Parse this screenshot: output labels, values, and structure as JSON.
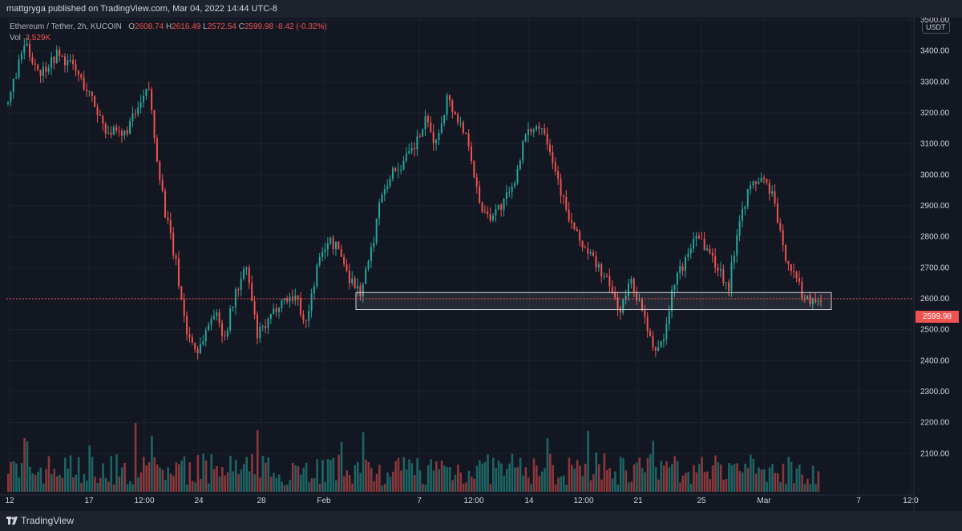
{
  "header": {
    "publisher_text": "mattgryga published on TradingView.com, Mar 04, 2022 14:44 UTC-8"
  },
  "legend": {
    "symbol": "Ethereum / Tether, 2h, KUCOIN",
    "open_label": "O",
    "open": "2608.74",
    "high_label": "H",
    "high": "2616.49",
    "low_label": "L",
    "low": "2572.54",
    "close_label": "C",
    "close": "2599.98",
    "change": "-8.42 (-0.32%)",
    "vol_label": "Vol",
    "vol": "3.529K"
  },
  "axis": {
    "currency": "USDT",
    "last_price_label": "2599.98"
  },
  "footer": {
    "brand": "TradingView"
  },
  "colors": {
    "background": "#131722",
    "bull": "#26a69a",
    "bear": "#ef5350",
    "grid": "#1e222d",
    "axis_text": "#d1d4dc"
  },
  "chart_data": {
    "type": "candlestick",
    "title": "Ethereum / Tether, 2h, KUCOIN",
    "ylabel": "USDT",
    "ylim": [
      2000,
      3500
    ],
    "y_ticks": [
      "3500.00",
      "3400.00",
      "3300.00",
      "3200.00",
      "3100.00",
      "3000.00",
      "2900.00",
      "2800.00",
      "2700.00",
      "2600.00",
      "2500.00",
      "2400.00",
      "2300.00",
      "2200.00",
      "2100.00"
    ],
    "x_ticks": [
      "12",
      "17",
      "12:00",
      "24",
      "28",
      "Feb",
      "7",
      "12:00",
      "14",
      "12:00",
      "21",
      "25",
      "Mar",
      "7",
      "12:0"
    ],
    "last_price": 2599.98,
    "grid": true,
    "support_zone": {
      "low": 2565,
      "high": 2620,
      "note": ""
    },
    "price_path": [
      [
        0,
        3230
      ],
      [
        6,
        3420
      ],
      [
        12,
        3330
      ],
      [
        18,
        3390
      ],
      [
        24,
        3350
      ],
      [
        30,
        3260
      ],
      [
        36,
        3150
      ],
      [
        42,
        3120
      ],
      [
        48,
        3210
      ],
      [
        52,
        3280
      ],
      [
        54,
        3120
      ],
      [
        58,
        2880
      ],
      [
        62,
        2710
      ],
      [
        66,
        2490
      ],
      [
        70,
        2430
      ],
      [
        76,
        2560
      ],
      [
        80,
        2480
      ],
      [
        84,
        2620
      ],
      [
        88,
        2700
      ],
      [
        92,
        2480
      ],
      [
        96,
        2520
      ],
      [
        100,
        2590
      ],
      [
        106,
        2610
      ],
      [
        110,
        2520
      ],
      [
        114,
        2700
      ],
      [
        118,
        2790
      ],
      [
        122,
        2760
      ],
      [
        126,
        2670
      ],
      [
        130,
        2620
      ],
      [
        134,
        2750
      ],
      [
        138,
        2950
      ],
      [
        142,
        3010
      ],
      [
        146,
        3040
      ],
      [
        150,
        3090
      ],
      [
        154,
        3170
      ],
      [
        158,
        3100
      ],
      [
        162,
        3250
      ],
      [
        166,
        3180
      ],
      [
        170,
        3110
      ],
      [
        174,
        2900
      ],
      [
        178,
        2870
      ],
      [
        182,
        2900
      ],
      [
        186,
        2950
      ],
      [
        190,
        3100
      ],
      [
        194,
        3160
      ],
      [
        198,
        3150
      ],
      [
        202,
        3020
      ],
      [
        206,
        2880
      ],
      [
        210,
        2800
      ],
      [
        214,
        2750
      ],
      [
        218,
        2700
      ],
      [
        222,
        2640
      ],
      [
        226,
        2560
      ],
      [
        230,
        2660
      ],
      [
        234,
        2560
      ],
      [
        238,
        2430
      ],
      [
        242,
        2470
      ],
      [
        246,
        2660
      ],
      [
        250,
        2720
      ],
      [
        254,
        2820
      ],
      [
        258,
        2760
      ],
      [
        262,
        2700
      ],
      [
        266,
        2640
      ],
      [
        270,
        2870
      ],
      [
        274,
        2960
      ],
      [
        278,
        2990
      ],
      [
        282,
        2940
      ],
      [
        286,
        2760
      ],
      [
        290,
        2680
      ],
      [
        294,
        2600
      ]
    ]
  }
}
